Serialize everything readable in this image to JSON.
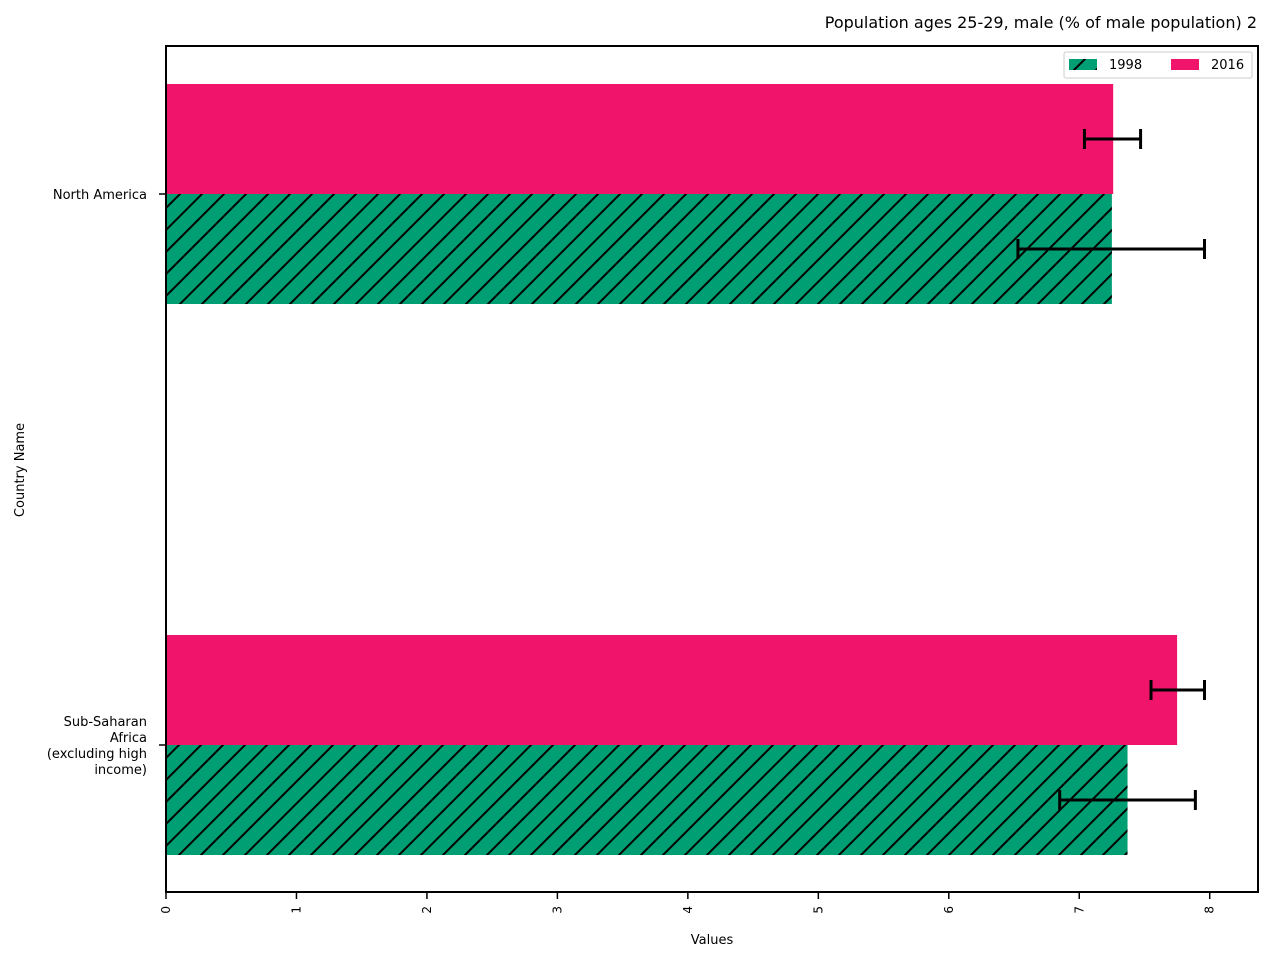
{
  "chart_data": {
    "type": "bar",
    "orientation": "horizontal",
    "title": "Population ages 25-29, male (% of male population) 2",
    "xlabel": "Values",
    "ylabel": "Country Name",
    "xlim": [
      0,
      8.37
    ],
    "xticks": [
      "0",
      "1",
      "2",
      "3",
      "4",
      "5",
      "6",
      "7",
      "8"
    ],
    "grid": false,
    "legend_position": "top-right",
    "categories": [
      [
        "North America"
      ],
      [
        "Sub-Saharan",
        "Africa",
        "(excluding high",
        "income)"
      ]
    ],
    "series": [
      {
        "name": "1998",
        "color": "#009e73",
        "hatch": "diagonal",
        "values": [
          7.25,
          7.37
        ],
        "error_low": [
          6.53,
          6.85
        ],
        "error_high": [
          7.96,
          7.89
        ]
      },
      {
        "name": "2016",
        "color": "#f0156b",
        "hatch": "none",
        "values": [
          7.26,
          7.75
        ],
        "error_low": [
          7.04,
          7.55
        ],
        "error_high": [
          7.47,
          7.96
        ]
      }
    ]
  }
}
